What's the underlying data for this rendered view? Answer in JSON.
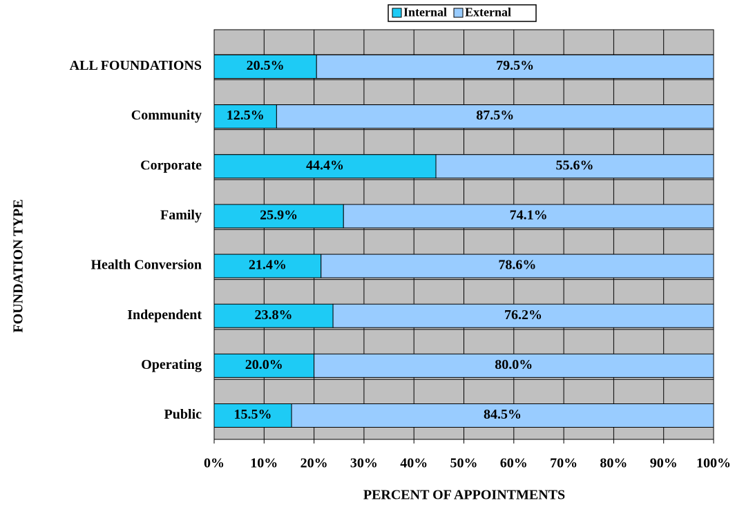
{
  "chart_data": {
    "type": "stacked_barh",
    "xlabel": "PERCENT OF APPOINTMENTS",
    "ylabel": "FOUNDATION TYPE",
    "categories": [
      "ALL FOUNDATIONS",
      "Community",
      "Corporate",
      "Family",
      "Health Conversion",
      "Independent",
      "Operating",
      "Public"
    ],
    "series": [
      {
        "name": "Internal",
        "color": "#1ecbf5",
        "values": [
          20.5,
          12.5,
          44.4,
          25.9,
          21.4,
          23.8,
          20.0,
          15.5
        ],
        "value_labels": [
          "20.5%",
          "12.5%",
          "44.4%",
          "25.9%",
          "21.4%",
          "23.8%",
          "20.0%",
          "15.5%"
        ]
      },
      {
        "name": "External",
        "color": "#99ccff",
        "values": [
          79.5,
          87.5,
          55.6,
          74.1,
          78.6,
          76.2,
          80.0,
          84.5
        ],
        "value_labels": [
          "79.5%",
          "87.5%",
          "55.6%",
          "74.1%",
          "78.6%",
          "76.2%",
          "80.0%",
          "84.5%"
        ]
      }
    ],
    "xlim": [
      0,
      100
    ],
    "xticks": [
      {
        "value": 0,
        "label": "0%"
      },
      {
        "value": 10,
        "label": "10%"
      },
      {
        "value": 20,
        "label": "20%"
      },
      {
        "value": 30,
        "label": "30%"
      },
      {
        "value": 40,
        "label": "40%"
      },
      {
        "value": 50,
        "label": "50%"
      },
      {
        "value": 60,
        "label": "60%"
      },
      {
        "value": 70,
        "label": "70%"
      },
      {
        "value": 80,
        "label": "80%"
      },
      {
        "value": 90,
        "label": "90%"
      },
      {
        "value": 100,
        "label": "100%"
      }
    ],
    "grid": true,
    "legend": "top"
  }
}
